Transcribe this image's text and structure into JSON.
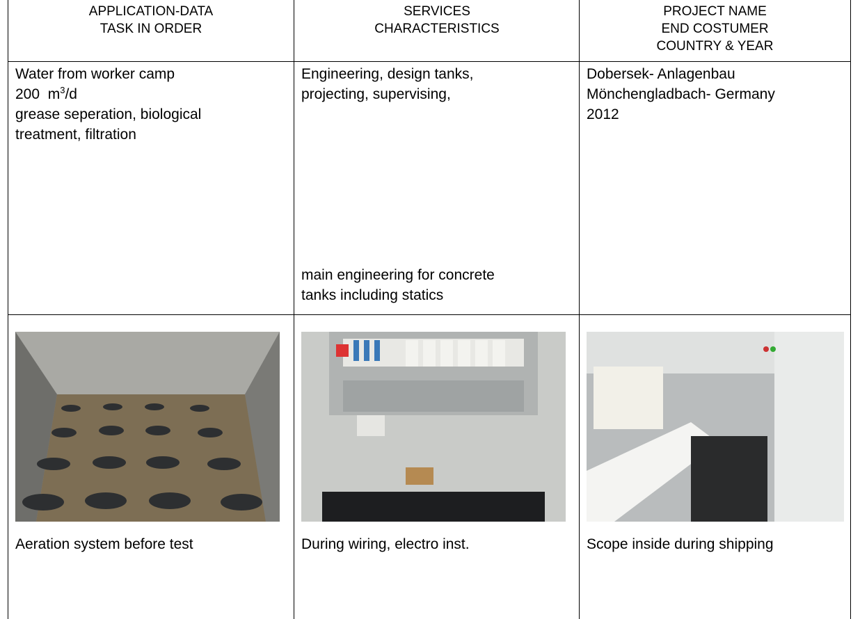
{
  "table": {
    "header": [
      [
        "APPLICATION-DATA",
        "TASK IN ORDER"
      ],
      [
        "SERVICES",
        "CHARACTERISTICS"
      ],
      [
        "PROJECT NAME",
        "END COSTUMER",
        "COUNTRY & YEAR"
      ]
    ],
    "description": [
      {
        "lines": [
          "Water from worker camp",
          {
            "text": "200  m",
            "sup": "3",
            "after": "/d"
          },
          "grease seperation, biological",
          "treatment, filtration"
        ]
      },
      {
        "lines": [
          "Engineering, design tanks,",
          "projecting, supervising,"
        ],
        "lines_bottom": [
          "main engineering for concrete",
          "tanks including statics"
        ]
      },
      {
        "lines": [
          "Dobersek- Anlagenbau",
          "Mönchengladbach- Germany",
          "2012"
        ]
      }
    ],
    "captions": [
      "Aeration system before test",
      "During wiring, electro inst.",
      "Scope inside during shipping"
    ]
  }
}
